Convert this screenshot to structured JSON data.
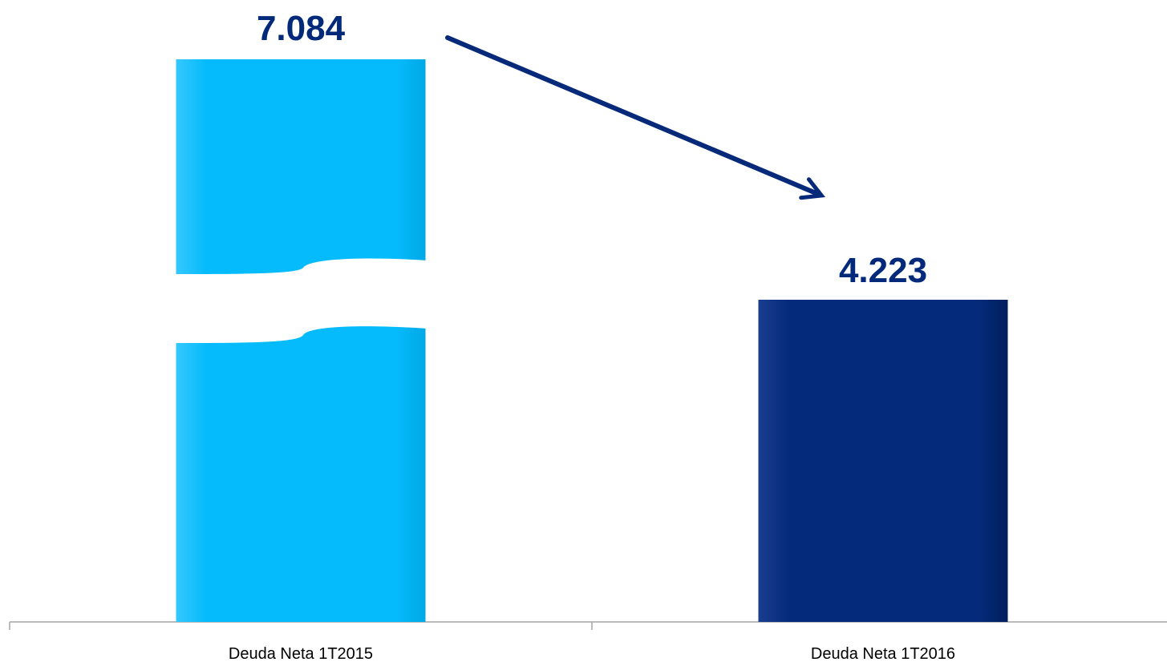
{
  "chart_data": {
    "type": "bar",
    "categories": [
      "Deuda Neta 1T2015",
      "Deuda Neta 1T2016"
    ],
    "values": [
      7084,
      4223
    ],
    "value_labels": [
      "7.084",
      "4.223"
    ],
    "title": "",
    "xlabel": "",
    "ylabel": "",
    "y_axis_broken": true,
    "grid": false,
    "legend": "none",
    "annotation": "arrow-down-from-first-to-second-bar",
    "colors": {
      "bar_1": "#06BBFC",
      "bar_2": "#042B7B",
      "value_label": "#03297A",
      "arrow": "#06297A",
      "axis": "#A6A6A6"
    }
  }
}
